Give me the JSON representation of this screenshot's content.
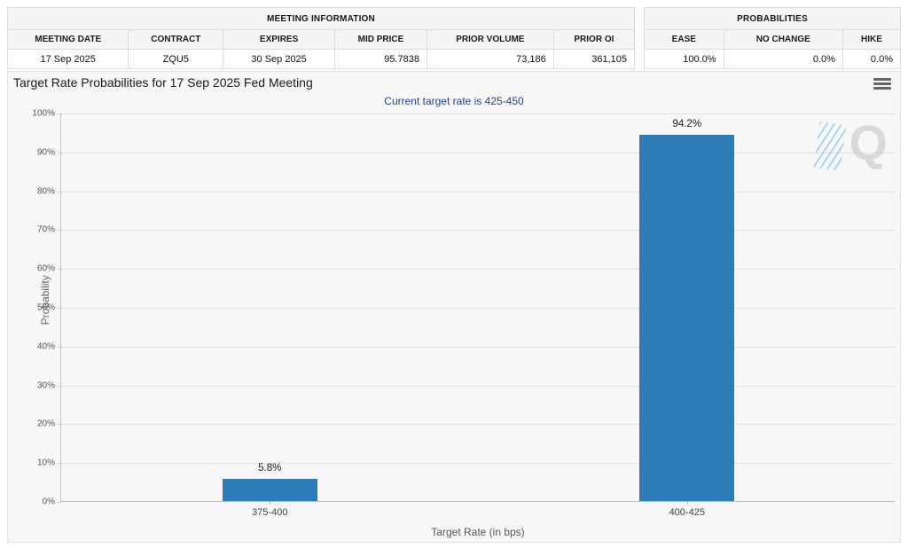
{
  "meeting_info": {
    "title": "MEETING INFORMATION",
    "columns": [
      "MEETING DATE",
      "CONTRACT",
      "EXPIRES",
      "MID PRICE",
      "PRIOR VOLUME",
      "PRIOR OI"
    ],
    "row": [
      "17 Sep 2025",
      "ZQU5",
      "30 Sep 2025",
      "95.7838",
      "73,186",
      "361,105"
    ]
  },
  "probabilities": {
    "title": "PROBABILITIES",
    "columns": [
      "EASE",
      "NO CHANGE",
      "HIKE"
    ],
    "row": [
      "100.0%",
      "0.0%",
      "0.0%"
    ]
  },
  "chart": {
    "title": "Target Rate Probabilities for 17 Sep 2025 Fed Meeting",
    "subtitle": "Current target rate is 425-450",
    "menu_icon": "hamburger-icon",
    "watermark_letter": "Q"
  },
  "chart_data": {
    "type": "bar",
    "categories": [
      "375-400",
      "400-425"
    ],
    "values": [
      5.8,
      94.2
    ],
    "data_labels": [
      "5.8%",
      "94.2%"
    ],
    "title": "Target Rate Probabilities for 17 Sep 2025 Fed Meeting",
    "subtitle": "Current target rate is 425-450",
    "xlabel": "Target Rate (in bps)",
    "ylabel": "Probability",
    "ylim": [
      0,
      100
    ],
    "ytick_step": 10,
    "ytick_suffix": "%",
    "grid": "horizontal-dotted",
    "legend": "none",
    "bar_color": "#2d7cb8"
  },
  "colors": {
    "bar": "#2d7cb8",
    "subtitle": "#26478d",
    "panel_bg": "#f7f7f7",
    "grid": "#cfcfcf"
  }
}
